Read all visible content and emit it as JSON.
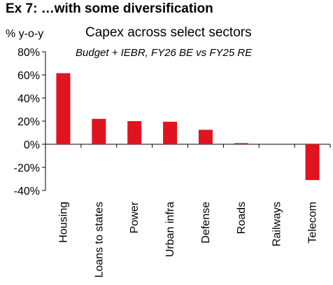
{
  "heading": "Ex 7: …with some diversification",
  "chart_data": {
    "type": "bar",
    "title": "Capex across select sectors",
    "subtitle": "Budget + IEBR, FY26 BE vs FY25 RE",
    "ylabel": "% y-o-y",
    "xlabel": "",
    "categories": [
      "Housing",
      "Loans to states",
      "Power",
      "Urban infra",
      "Defense",
      "Roads",
      "Railways",
      "Telecom"
    ],
    "values": [
      61.5,
      22,
      20,
      19.5,
      12.5,
      1,
      0,
      -31
    ],
    "ylim": [
      -40,
      80
    ],
    "yticks": [
      80,
      60,
      40,
      20,
      0,
      -20,
      -40
    ],
    "ytick_labels": [
      "80%",
      "60%",
      "40%",
      "20%",
      "0%",
      "-20%",
      "-40%"
    ],
    "grid": false,
    "legend": "none",
    "bar_color": "#e0141e"
  }
}
